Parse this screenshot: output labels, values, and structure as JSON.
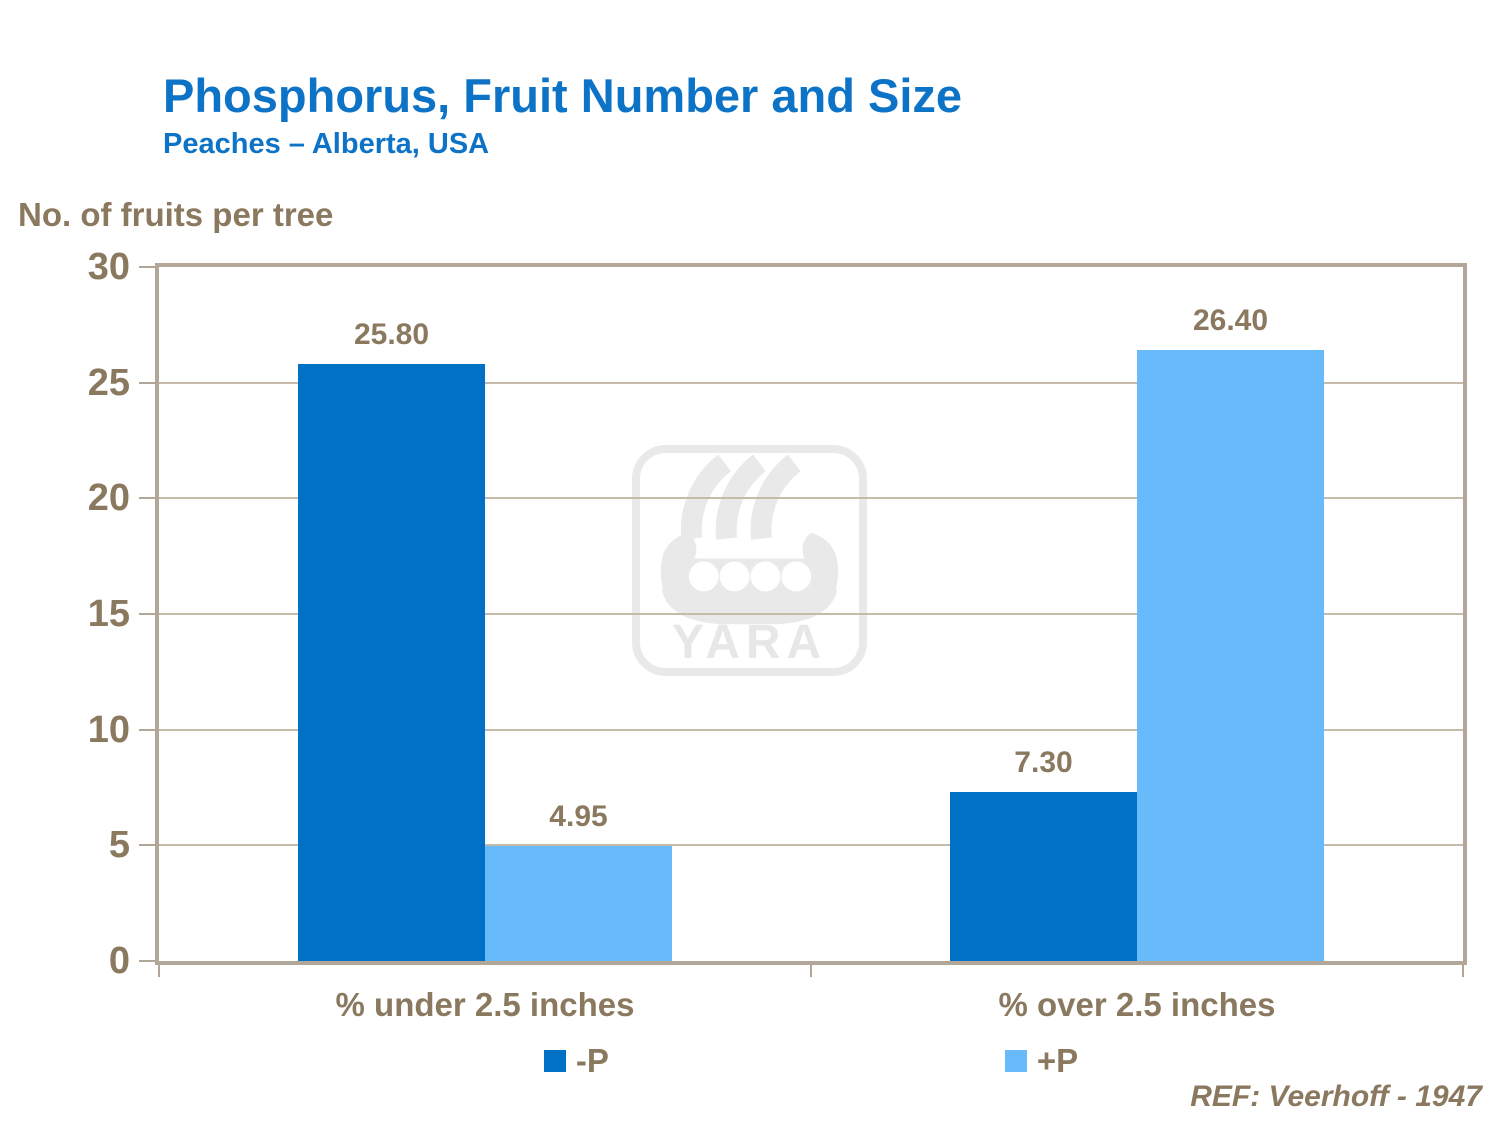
{
  "header": {
    "title": "Phosphorus, Fruit Number and Size",
    "subtitle": "Peaches – Alberta, USA"
  },
  "y_axis_title": "No. of fruits per tree",
  "reference": "REF: Veerhoff - 1947",
  "watermark_text": "YARA",
  "colors": {
    "title_blue": "#0c73c6",
    "text_brown": "#8a795f",
    "bar_dark": "#0071c5",
    "bar_light": "#67bbfa",
    "border_tan": "#b1a698",
    "grid_tan": "#c6baaa",
    "watermark_gray": "#e9e9e9"
  },
  "chart_data": {
    "type": "bar",
    "title": "Phosphorus, Fruit Number and Size",
    "subtitle": "Peaches – Alberta, USA",
    "xlabel": "",
    "ylabel": "No. of fruits per tree",
    "categories": [
      "% under 2.5 inches",
      "% over 2.5 inches"
    ],
    "series": [
      {
        "name": "-P",
        "values": [
          25.8,
          7.3
        ],
        "value_labels": [
          "25.80",
          "7.30"
        ],
        "color": "#0071c5"
      },
      {
        "name": "+P",
        "values": [
          4.95,
          26.4
        ],
        "value_labels": [
          "4.95",
          "26.40"
        ],
        "color": "#67bbfa"
      }
    ],
    "ylim": [
      0,
      30
    ],
    "ytick_step": 5,
    "grid": true,
    "legend_position": "bottom",
    "annotation": "REF: Veerhoff - 1947"
  }
}
